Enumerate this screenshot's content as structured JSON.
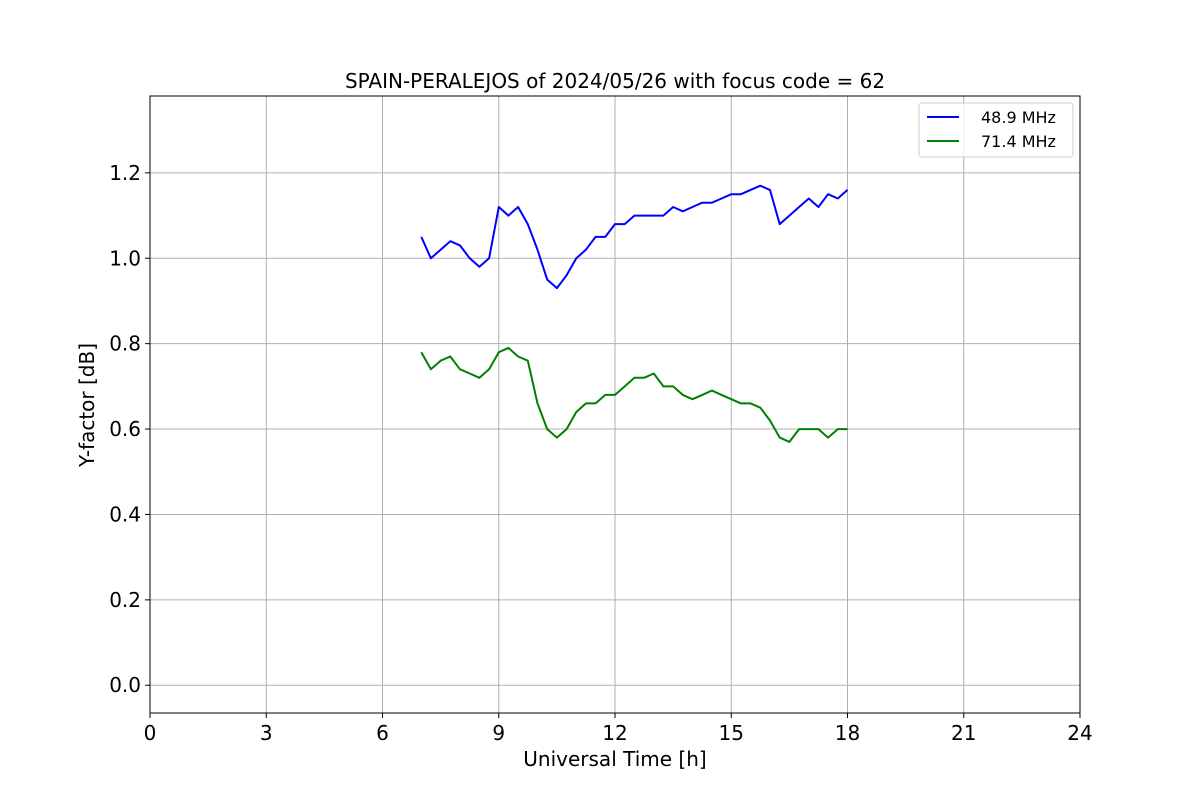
{
  "chart_data": {
    "type": "line",
    "title": "SPAIN-PERALEJOS of 2024/05/26 with focus code = 62",
    "xlabel": "Universal Time [h]",
    "ylabel": "Y-factor [dB]",
    "xlim": [
      0,
      24
    ],
    "ylim": [
      -0.065,
      1.38
    ],
    "xticks": [
      0,
      3,
      6,
      9,
      12,
      15,
      18,
      21,
      24
    ],
    "xtick_labels": [
      "0",
      "3",
      "6",
      "9",
      "12",
      "15",
      "18",
      "21",
      "24"
    ],
    "yticks": [
      0.0,
      0.2,
      0.4,
      0.6,
      0.8,
      1.0,
      1.2
    ],
    "ytick_labels": [
      "0.0",
      "0.2",
      "0.4",
      "0.6",
      "0.8",
      "1.0",
      "1.2"
    ],
    "grid": true,
    "legend_position": "top-right",
    "series": [
      {
        "name": "48.9 MHz",
        "color": "#0000ff",
        "x": [
          7.0,
          7.25,
          7.5,
          7.75,
          8.0,
          8.25,
          8.5,
          8.75,
          9.0,
          9.25,
          9.5,
          9.75,
          10.0,
          10.25,
          10.5,
          10.75,
          11.0,
          11.25,
          11.5,
          11.75,
          12.0,
          12.25,
          12.5,
          12.75,
          13.0,
          13.25,
          13.5,
          13.75,
          14.0,
          14.25,
          14.5,
          14.75,
          15.0,
          15.25,
          15.5,
          15.75,
          16.0,
          16.25,
          16.5,
          16.75,
          17.0,
          17.25,
          17.5,
          17.75,
          18.0
        ],
        "y": [
          1.05,
          1.0,
          1.02,
          1.04,
          1.03,
          1.0,
          0.98,
          1.0,
          1.12,
          1.1,
          1.12,
          1.08,
          1.02,
          0.95,
          0.93,
          0.96,
          1.0,
          1.02,
          1.05,
          1.05,
          1.08,
          1.08,
          1.1,
          1.1,
          1.1,
          1.1,
          1.12,
          1.11,
          1.12,
          1.13,
          1.13,
          1.14,
          1.15,
          1.15,
          1.16,
          1.17,
          1.16,
          1.08,
          1.1,
          1.12,
          1.14,
          1.12,
          1.15,
          1.14,
          1.16
        ]
      },
      {
        "name": "71.4 MHz",
        "color": "#008000",
        "x": [
          7.0,
          7.25,
          7.5,
          7.75,
          8.0,
          8.25,
          8.5,
          8.75,
          9.0,
          9.25,
          9.5,
          9.75,
          10.0,
          10.25,
          10.5,
          10.75,
          11.0,
          11.25,
          11.5,
          11.75,
          12.0,
          12.25,
          12.5,
          12.75,
          13.0,
          13.25,
          13.5,
          13.75,
          14.0,
          14.25,
          14.5,
          14.75,
          15.0,
          15.25,
          15.5,
          15.75,
          16.0,
          16.25,
          16.5,
          16.75,
          17.0,
          17.25,
          17.5,
          17.75,
          18.0
        ],
        "y": [
          0.78,
          0.74,
          0.76,
          0.77,
          0.74,
          0.73,
          0.72,
          0.74,
          0.78,
          0.79,
          0.77,
          0.76,
          0.66,
          0.6,
          0.58,
          0.6,
          0.64,
          0.66,
          0.66,
          0.68,
          0.68,
          0.7,
          0.72,
          0.72,
          0.73,
          0.7,
          0.7,
          0.68,
          0.67,
          0.68,
          0.69,
          0.68,
          0.67,
          0.66,
          0.66,
          0.65,
          0.62,
          0.58,
          0.57,
          0.6,
          0.6,
          0.6,
          0.58,
          0.6,
          0.6
        ]
      }
    ]
  }
}
